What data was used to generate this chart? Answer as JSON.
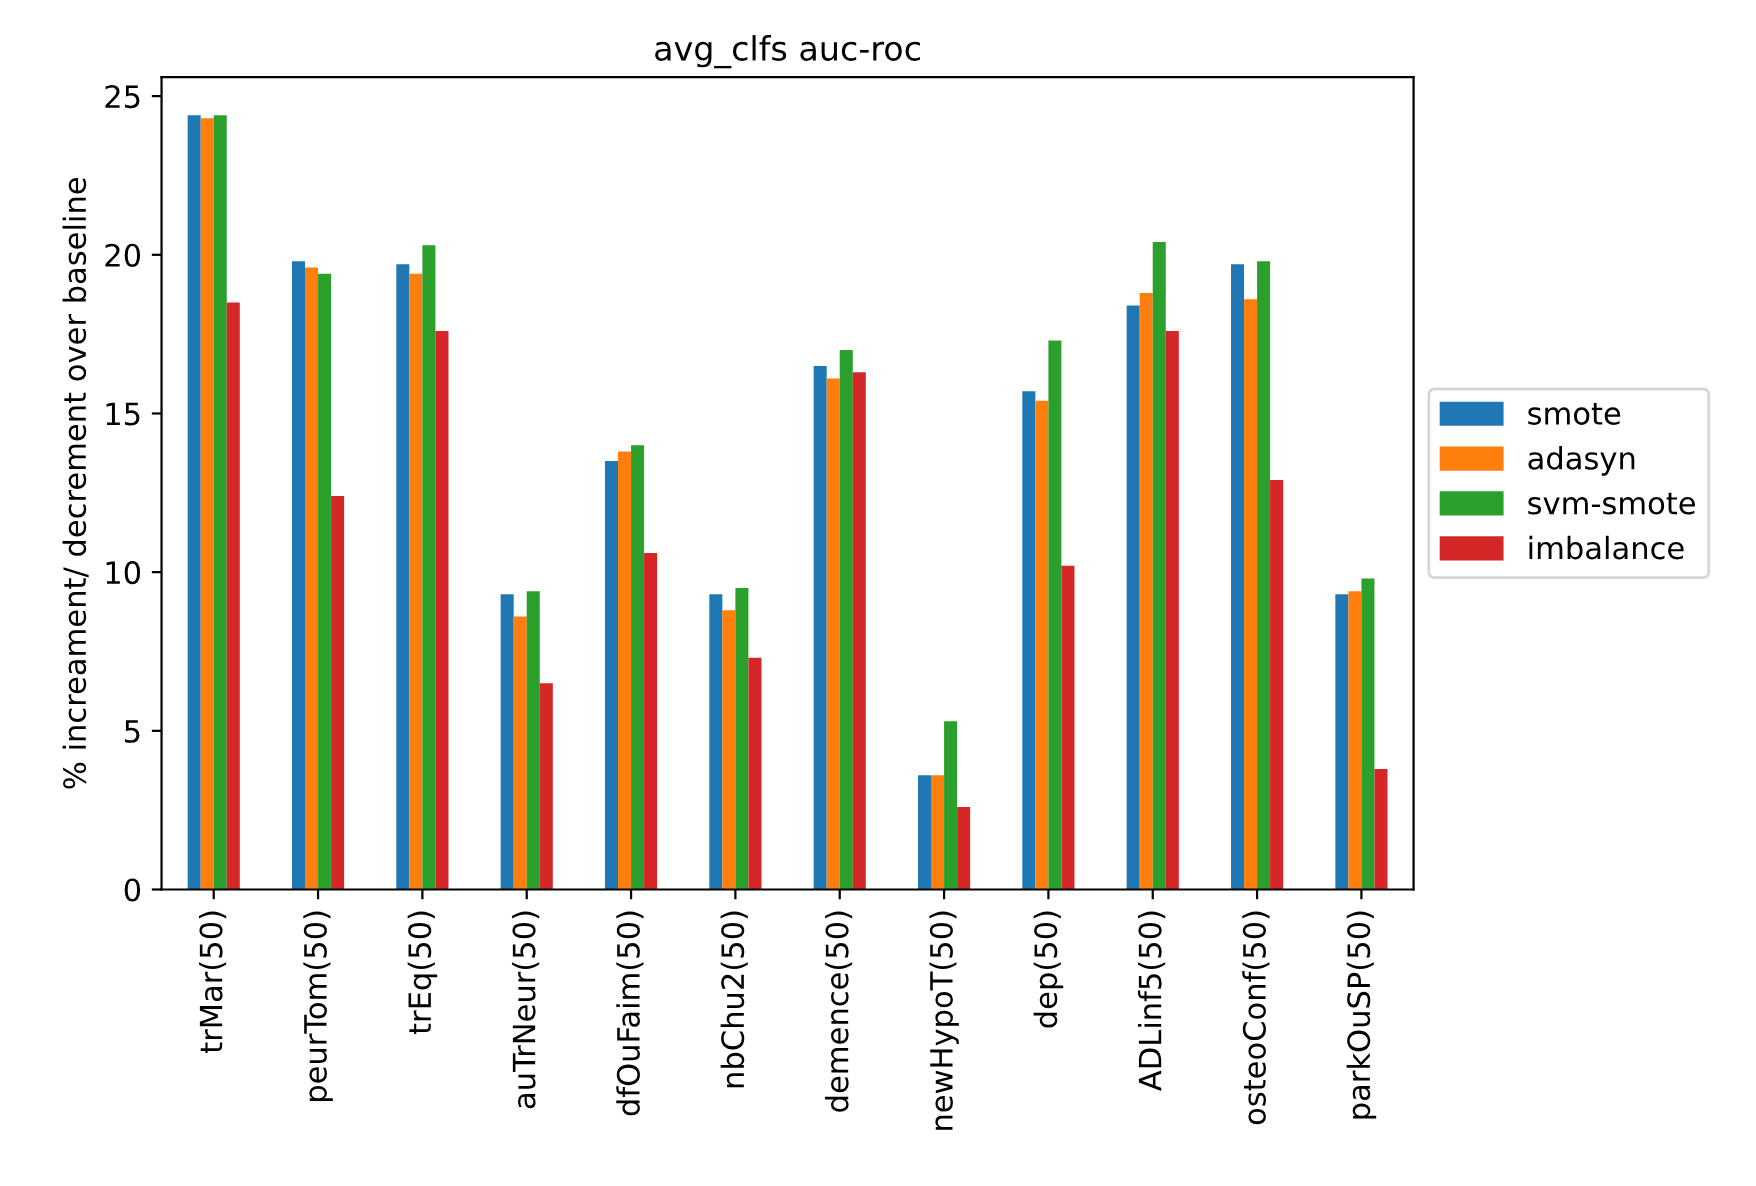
{
  "chart_data": {
    "type": "bar",
    "title": "avg_clfs auc-roc",
    "ylabel": "% increament/ decrement over baseline",
    "categories": [
      "trMar(50)",
      "peurTom(50)",
      "trEq(50)",
      "auTrNeur(50)",
      "dfOuFaim(50)",
      "nbChu2(50)",
      "demence(50)",
      "newHypoT(50)",
      "dep(50)",
      "ADLinf5(50)",
      "osteoConf(50)",
      "parkOuSP(50)"
    ],
    "series": [
      {
        "name": "smote",
        "color": "#1f77b4",
        "values": [
          24.4,
          19.8,
          19.7,
          9.3,
          13.5,
          9.3,
          16.5,
          3.6,
          15.7,
          18.4,
          19.7,
          9.3
        ]
      },
      {
        "name": "adasyn",
        "color": "#ff7f0e",
        "values": [
          24.3,
          19.6,
          19.4,
          8.6,
          13.8,
          8.8,
          16.1,
          3.6,
          15.4,
          18.8,
          18.6,
          9.4
        ]
      },
      {
        "name": "svm-smote",
        "color": "#2ca02c",
        "values": [
          24.4,
          19.4,
          20.3,
          9.4,
          14.0,
          9.5,
          17.0,
          5.3,
          17.3,
          20.4,
          19.8,
          9.8
        ]
      },
      {
        "name": "imbalance",
        "color": "#d62728",
        "values": [
          18.5,
          12.4,
          17.6,
          6.5,
          10.6,
          7.3,
          16.3,
          2.6,
          10.2,
          17.6,
          12.9,
          3.8
        ]
      }
    ],
    "ylim": [
      0,
      25.6
    ],
    "yticks": [
      0,
      5,
      10,
      15,
      20,
      25
    ],
    "grid": false,
    "legend": "right"
  }
}
